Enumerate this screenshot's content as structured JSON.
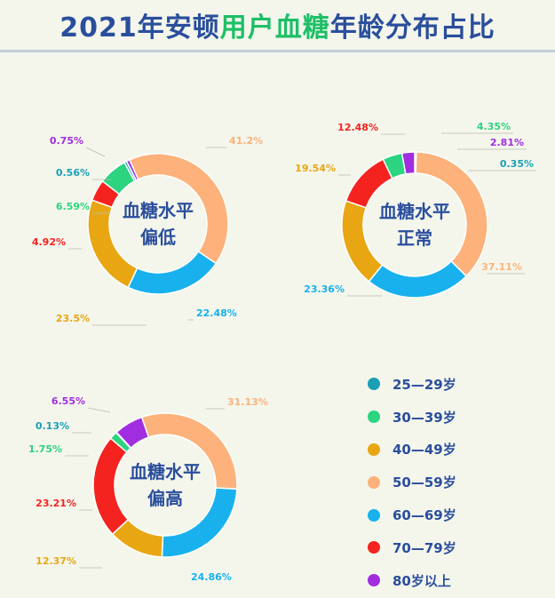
{
  "header": {
    "title_part1": "2021年安顿",
    "title_part2": "用户血糖",
    "title_part3": "年龄分布占比"
  },
  "legend": [
    {
      "label": "25—29岁",
      "color": "#1a9fb5"
    },
    {
      "label": "30—39岁",
      "color": "#2cd480"
    },
    {
      "label": "40—49岁",
      "color": "#e8a613"
    },
    {
      "label": "50—59岁",
      "color": "#fcb27a"
    },
    {
      "label": "60—69岁",
      "color": "#18b1ee"
    },
    {
      "label": "70—79岁",
      "color": "#f5231f"
    },
    {
      "label": "80岁以上",
      "color": "#a12de0"
    }
  ],
  "chart_data": [
    {
      "type": "pie",
      "title_lines": [
        "血糖水平",
        "偏低"
      ],
      "categories": [
        "25—29岁",
        "30—39岁",
        "40—49岁",
        "50—59岁",
        "60—69岁",
        "70—79岁",
        "80岁以上"
      ],
      "values": [
        0.56,
        6.59,
        23.5,
        41.2,
        22.48,
        4.92,
        0.75
      ],
      "labels": [
        "0.56%",
        "6.59%",
        "23.5%",
        "41.2%",
        "22.48%",
        "4.92%",
        "0.75%"
      ],
      "colors": [
        "#1a9fb5",
        "#2cd480",
        "#e8a613",
        "#fcb27a",
        "#18b1ee",
        "#f5231f",
        "#a12de0"
      ]
    },
    {
      "type": "pie",
      "title_lines": [
        "血糖水平",
        "正常"
      ],
      "categories": [
        "25—29岁",
        "30—39岁",
        "40—49岁",
        "50—59岁",
        "60—69岁",
        "70—79岁",
        "80岁以上"
      ],
      "values": [
        0.35,
        4.35,
        19.54,
        37.11,
        23.36,
        12.48,
        2.81
      ],
      "labels": [
        "0.35%",
        "4.35%",
        "19.54%",
        "37.11%",
        "23.36%",
        "12.48%",
        "2.81%"
      ],
      "colors": [
        "#1a9fb5",
        "#2cd480",
        "#e8a613",
        "#fcb27a",
        "#18b1ee",
        "#f5231f",
        "#a12de0"
      ]
    },
    {
      "type": "pie",
      "title_lines": [
        "血糖水平",
        "偏高"
      ],
      "categories": [
        "25—29岁",
        "30—39岁",
        "40—49岁",
        "50—59岁",
        "60—69岁",
        "70—79岁",
        "80岁以上"
      ],
      "values": [
        0.13,
        1.75,
        12.37,
        31.13,
        24.86,
        23.21,
        6.55
      ],
      "labels": [
        "0.13%",
        "1.75%",
        "12.37%",
        "31.13%",
        "24.86%",
        "23.21%",
        "6.55%"
      ],
      "colors": [
        "#1a9fb5",
        "#2cd480",
        "#e8a613",
        "#fcb27a",
        "#18b1ee",
        "#f5231f",
        "#a12de0"
      ]
    }
  ]
}
